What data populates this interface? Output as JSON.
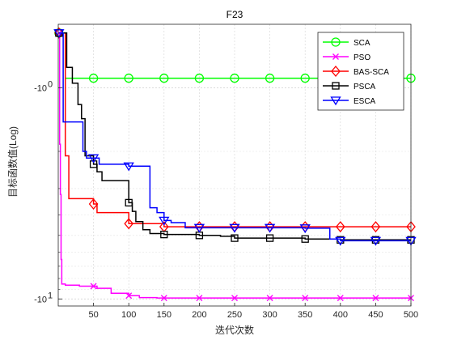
{
  "chart_data": {
    "type": "line",
    "title": "F23",
    "xlabel": "迭代次数",
    "ylabel": "目标函数值(Log)",
    "y_scale": "log",
    "y_tick_note": "tick labels show -10^0 and -10^1; values stored are the function values (negative)",
    "xlim": [
      0,
      500
    ],
    "ylim": [
      -10.8,
      -0.5
    ],
    "xticks": [
      50,
      100,
      150,
      200,
      250,
      300,
      350,
      400,
      450,
      500
    ],
    "xtick_labels": [
      "50",
      "100",
      "150",
      "200",
      "250",
      "300",
      "350",
      "400",
      "450",
      "500"
    ],
    "yticks": [
      -1,
      -10
    ],
    "ytick_labels": [
      "-10^0",
      "-10^1"
    ],
    "grid": true,
    "legend_position": "top-right",
    "series": [
      {
        "name": "SCA",
        "color": "#00ff00",
        "marker": "circle",
        "steps": [
          [
            1,
            -0.55
          ],
          [
            8,
            -0.55
          ],
          [
            10,
            -0.9
          ],
          [
            500,
            -0.9
          ]
        ]
      },
      {
        "name": "PSO",
        "color": "#ff00ff",
        "marker": "x",
        "steps": [
          [
            1,
            -0.55
          ],
          [
            2,
            -1.85
          ],
          [
            3,
            -3.2
          ],
          [
            4,
            -6.5
          ],
          [
            5,
            -8.5
          ],
          [
            10,
            -8.6
          ],
          [
            30,
            -8.7
          ],
          [
            55,
            -8.9
          ],
          [
            75,
            -9.4
          ],
          [
            100,
            -9.65
          ],
          [
            115,
            -9.85
          ],
          [
            140,
            -9.9
          ],
          [
            500,
            -9.9
          ]
        ]
      },
      {
        "name": "BAS-SCA",
        "color": "#ff0000",
        "marker": "diamond",
        "steps": [
          [
            1,
            -0.55
          ],
          [
            8,
            -0.55
          ],
          [
            10,
            -2.1
          ],
          [
            15,
            -3.35
          ],
          [
            50,
            -3.55
          ],
          [
            55,
            -3.9
          ],
          [
            100,
            -4.4
          ],
          [
            150,
            -4.55
          ],
          [
            500,
            -4.55
          ]
        ]
      },
      {
        "name": "PSCA",
        "color": "#000000",
        "marker": "square",
        "steps": [
          [
            1,
            -0.55
          ],
          [
            9,
            -0.55
          ],
          [
            12,
            -0.8
          ],
          [
            20,
            -0.95
          ],
          [
            28,
            -1.2
          ],
          [
            33,
            -1.4
          ],
          [
            38,
            -2.1
          ],
          [
            50,
            -2.3
          ],
          [
            55,
            -2.5
          ],
          [
            62,
            -2.75
          ],
          [
            100,
            -3.5
          ],
          [
            105,
            -3.85
          ],
          [
            110,
            -4.3
          ],
          [
            120,
            -4.7
          ],
          [
            130,
            -4.9
          ],
          [
            150,
            -4.95
          ],
          [
            200,
            -5.0
          ],
          [
            230,
            -5.05
          ],
          [
            250,
            -5.15
          ],
          [
            350,
            -5.2
          ],
          [
            400,
            -5.25
          ],
          [
            500,
            -5.25
          ]
        ]
      },
      {
        "name": "ESCA",
        "color": "#0000ff",
        "marker": "triangle-down",
        "steps": [
          [
            1,
            -0.55
          ],
          [
            7,
            -1.45
          ],
          [
            35,
            -2.0
          ],
          [
            40,
            -2.15
          ],
          [
            58,
            -2.3
          ],
          [
            100,
            -2.35
          ],
          [
            130,
            -3.7
          ],
          [
            140,
            -3.9
          ],
          [
            150,
            -4.25
          ],
          [
            160,
            -4.35
          ],
          [
            180,
            -4.6
          ],
          [
            350,
            -4.62
          ],
          [
            385,
            -5.2
          ],
          [
            400,
            -5.3
          ],
          [
            500,
            -5.3
          ]
        ]
      }
    ]
  }
}
